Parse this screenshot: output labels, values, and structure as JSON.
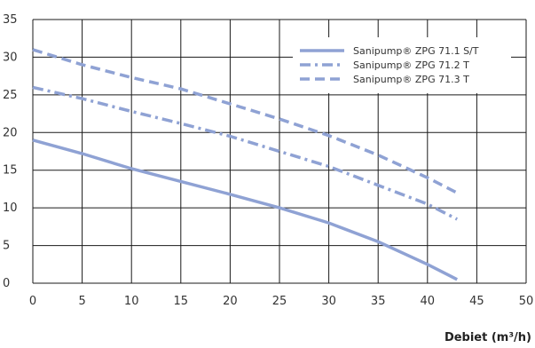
{
  "chart_data": {
    "type": "line",
    "title": "",
    "xlabel": "Debiet (m³/h)",
    "ylabel": "",
    "xlim": [
      0,
      50
    ],
    "ylim": [
      0,
      35
    ],
    "x_ticks": [
      0,
      5,
      10,
      15,
      20,
      25,
      30,
      35,
      40,
      45,
      50
    ],
    "y_ticks": [
      0,
      5,
      10,
      15,
      20,
      25,
      30,
      35
    ],
    "grid": true,
    "legend_position": "top-right",
    "series": [
      {
        "name": "Sanipump® ZPG 71.1 S/T",
        "style": "solid",
        "color": "#8fa2d4",
        "points": [
          [
            0,
            19
          ],
          [
            5,
            17.2
          ],
          [
            10,
            15.2
          ],
          [
            15,
            13.5
          ],
          [
            20,
            11.8
          ],
          [
            25,
            10
          ],
          [
            30,
            8
          ],
          [
            35,
            5.5
          ],
          [
            40,
            2.5
          ],
          [
            43,
            0.5
          ]
        ]
      },
      {
        "name": "Sanipump® ZPG 71.2 T",
        "style": "dash-dot",
        "color": "#8fa2d4",
        "points": [
          [
            0,
            26
          ],
          [
            5,
            24.5
          ],
          [
            10,
            22.8
          ],
          [
            15,
            21.2
          ],
          [
            20,
            19.5
          ],
          [
            25,
            17.5
          ],
          [
            30,
            15.5
          ],
          [
            35,
            13
          ],
          [
            40,
            10.5
          ],
          [
            43,
            8.5
          ]
        ]
      },
      {
        "name": "Sanipump® ZPG 71.3 T",
        "style": "dashed",
        "color": "#8fa2d4",
        "points": [
          [
            0,
            31
          ],
          [
            5,
            29
          ],
          [
            10,
            27.3
          ],
          [
            15,
            25.8
          ],
          [
            20,
            23.8
          ],
          [
            25,
            21.8
          ],
          [
            30,
            19.6
          ],
          [
            35,
            17
          ],
          [
            40,
            14
          ],
          [
            43,
            12
          ]
        ]
      }
    ]
  }
}
